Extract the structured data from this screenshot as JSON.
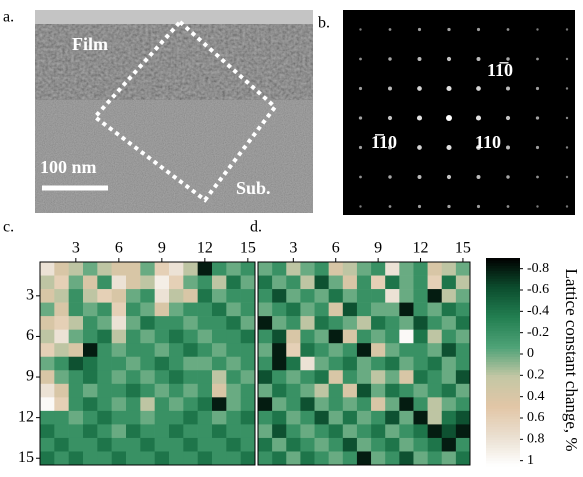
{
  "micrograph": {
    "label": "a.",
    "film": "Film",
    "scale": "100 nm",
    "substrate": "Sub."
  },
  "diffraction": {
    "label": "b.",
    "spot_labels": [
      "11̅0",
      "1̅10",
      "110"
    ]
  },
  "colorbar": {
    "label": "Lattice constant change, %",
    "zlim": [
      -0.9,
      1.05
    ],
    "ticks": [
      -0.8,
      -0.6,
      -0.4,
      -0.2,
      0,
      0.2,
      0.4,
      0.6,
      0.8,
      1
    ],
    "colormap": [
      "#000000",
      "#0c4d2e",
      "#237f51",
      "#4ea277",
      "#c4c7a5",
      "#e2c6a6",
      "#eadfd0",
      "#ffffff"
    ]
  },
  "chart_data": [
    {
      "type": "heatmap",
      "label": "c.",
      "xlim": [
        0.5,
        15.5
      ],
      "ylim": [
        0.5,
        15.5
      ],
      "xticks": [
        3,
        6,
        9,
        12,
        15
      ],
      "yticks": [
        3,
        6,
        9,
        12,
        15
      ],
      "values": [
        [
          0.8,
          0.4,
          0.2,
          0,
          0.2,
          0.4,
          0.4,
          0,
          0.6,
          0.8,
          0.2,
          -0.8,
          -0.2,
          0,
          -0.2
        ],
        [
          0.2,
          0.6,
          0,
          0.4,
          -0.2,
          0.8,
          0.4,
          0.2,
          0.9,
          0.6,
          0,
          -0.2,
          0.2,
          -0.4,
          0
        ],
        [
          0.4,
          0.2,
          -0.2,
          0.2,
          0.6,
          0.4,
          0,
          -0.2,
          0.8,
          0.2,
          0.4,
          -0.4,
          0,
          -0.2,
          -0.2
        ],
        [
          0,
          0.4,
          -0.2,
          0,
          -0.2,
          0.6,
          -0.2,
          0,
          0.4,
          0,
          -0.2,
          -0.2,
          -0.4,
          0,
          -0.2
        ],
        [
          0.4,
          0.6,
          0.2,
          -0.2,
          0,
          0.8,
          0,
          -0.4,
          -0.2,
          -0.2,
          0,
          -0.2,
          -0.2,
          -0.4,
          0
        ],
        [
          0.2,
          0.8,
          0,
          -0.2,
          -0.4,
          0.2,
          -0.2,
          0,
          -0.2,
          -0.4,
          -0.2,
          0,
          -0.2,
          -0.2,
          -0.4
        ],
        [
          0.6,
          0.2,
          0.4,
          -0.8,
          -0.2,
          0,
          -0.2,
          -0.2,
          0,
          -0.2,
          -0.4,
          -0.2,
          0,
          -0.2,
          -0.2
        ],
        [
          0,
          -0.2,
          -0.6,
          -0.4,
          -0.2,
          -0.2,
          0,
          -0.2,
          -0.4,
          -0.2,
          0,
          0,
          -0.2,
          0,
          -0.2
        ],
        [
          0.4,
          0,
          -0.2,
          -0.4,
          -0.2,
          0,
          -0.2,
          0,
          -0.2,
          -0.4,
          -0.2,
          -0.2,
          0.2,
          -0.2,
          0
        ],
        [
          0.8,
          0.4,
          -0.2,
          0,
          -0.2,
          -0.2,
          -0.4,
          -0.2,
          0,
          -0.2,
          0,
          -0.2,
          0.4,
          0,
          -0.2
        ],
        [
          1,
          0.6,
          -0.2,
          -0.4,
          -0.2,
          0,
          -0.2,
          0.2,
          -0.2,
          0,
          -0.2,
          -0.4,
          -0.8,
          0,
          -0.2
        ],
        [
          -0.2,
          -0.2,
          0,
          -0.2,
          -0.4,
          -0.2,
          -0.2,
          0,
          -0.2,
          -0.2,
          -0.4,
          -0.2,
          0,
          -0.2,
          -0.4
        ],
        [
          -0.4,
          -0.2,
          -0.2,
          -0.4,
          -0.2,
          0,
          -0.4,
          -0.2,
          -0.2,
          -0.4,
          -0.2,
          -0.2,
          -0.4,
          -0.2,
          -0.2
        ],
        [
          -0.2,
          -0.4,
          -0.2,
          -0.2,
          -0.4,
          -0.2,
          -0.2,
          -0.4,
          -0.2,
          -0.2,
          -0.4,
          -0.2,
          -0.2,
          -0.4,
          -0.2
        ],
        [
          -0.4,
          -0.2,
          -0.4,
          -0.2,
          -0.2,
          -0.4,
          -0.2,
          -0.2,
          -0.4,
          -0.2,
          -0.2,
          -0.4,
          -0.2,
          -0.2,
          -0.4
        ]
      ]
    },
    {
      "type": "heatmap",
      "label": "d.",
      "xlim": [
        0.5,
        15.5
      ],
      "ylim": [
        0.5,
        15.5
      ],
      "xticks": [
        3,
        6,
        9,
        12,
        15
      ],
      "values": [
        [
          0,
          -0.2,
          0.2,
          0,
          -0.2,
          0.4,
          0.2,
          0,
          -0.2,
          0.8,
          0,
          -0.2,
          0.4,
          0.2,
          0
        ],
        [
          -0.4,
          0,
          -0.2,
          0.2,
          -0.6,
          0,
          0.4,
          -0.2,
          0.6,
          -0.4,
          0,
          -0.2,
          0.6,
          -0.4,
          0.2
        ],
        [
          -0.2,
          -0.6,
          0,
          -0.2,
          0,
          -0.4,
          0,
          -0.2,
          -0.2,
          0.8,
          0,
          -0.2,
          -0.8,
          0.2,
          0
        ],
        [
          0,
          -0.2,
          -0.4,
          0,
          -0.2,
          0.4,
          -0.6,
          -0.2,
          0,
          0,
          -0.8,
          -0.2,
          0,
          -0.4,
          -0.2
        ],
        [
          -0.8,
          0,
          -0.2,
          0.2,
          -0.4,
          -0.2,
          0,
          0.2,
          -0.4,
          -0.2,
          0,
          -0.6,
          -0.2,
          0,
          -0.4
        ],
        [
          -0.2,
          -0.6,
          0.4,
          -0.2,
          0,
          -0.8,
          0.4,
          -0.2,
          0,
          -0.2,
          1,
          -0.4,
          0.2,
          -0.2,
          0
        ],
        [
          0,
          -0.8,
          0.6,
          -0.4,
          -0.2,
          0,
          -0.2,
          -0.8,
          0.4,
          0,
          -0.2,
          -0.2,
          0,
          -0.6,
          -0.2
        ],
        [
          -0.2,
          -0.8,
          -0.4,
          0.8,
          0,
          -0.2,
          -0.4,
          0,
          -0.2,
          -0.4,
          0,
          -0.2,
          -0.4,
          0,
          -0.2
        ],
        [
          -0.6,
          -0.2,
          0,
          -0.2,
          -0.4,
          0.4,
          -0.2,
          0,
          0.2,
          0,
          0.4,
          -0.4,
          -0.2,
          0,
          -0.6
        ],
        [
          0,
          -0.4,
          -0.2,
          0,
          0.2,
          -0.2,
          0.4,
          -0.6,
          0,
          -0.4,
          -0.2,
          0,
          -0.2,
          -0.4,
          0
        ],
        [
          -0.8,
          0,
          -0.2,
          -0.6,
          0,
          -0.2,
          0,
          -0.2,
          0.4,
          0,
          -0.8,
          -0.2,
          0.2,
          0,
          -0.2
        ],
        [
          -0.2,
          -0.4,
          0,
          -0.2,
          -0.6,
          0,
          -0.4,
          0,
          -0.2,
          -0.6,
          0,
          -0.8,
          0.2,
          -0.4,
          -0.6
        ],
        [
          0,
          -0.6,
          -0.2,
          0,
          -0.2,
          -0.4,
          0,
          -0.2,
          -0.4,
          0,
          -0.2,
          -0.4,
          -0.8,
          -0.6,
          -0.8
        ],
        [
          -0.4,
          0,
          -0.4,
          -0.2,
          0,
          -0.2,
          -0.6,
          0,
          -0.2,
          -0.4,
          0,
          -0.2,
          -0.4,
          -0.8,
          -0.2
        ],
        [
          -0.2,
          -0.4,
          0,
          -0.4,
          -0.2,
          0,
          -0.2,
          -0.8,
          0,
          -0.2,
          -0.6,
          0,
          -0.2,
          0,
          -0.4
        ]
      ]
    }
  ]
}
